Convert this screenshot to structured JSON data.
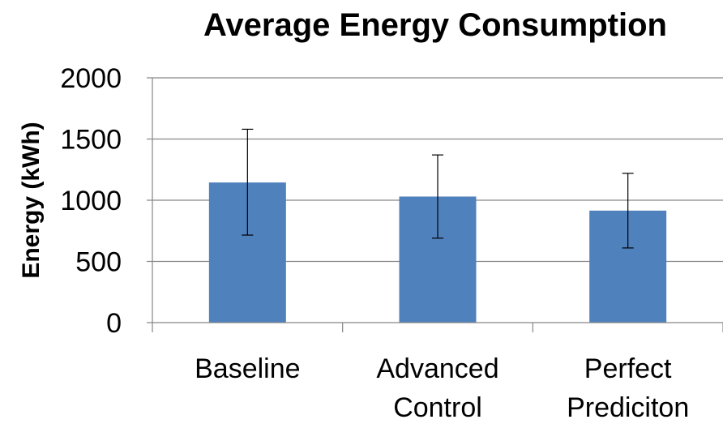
{
  "chart_data": {
    "type": "bar",
    "title": "Average Energy Consumption",
    "xlabel": "",
    "ylabel": "Energy (kWh)",
    "ylim": [
      0,
      2000
    ],
    "yticks": [
      "0",
      "500",
      "1000",
      "1500",
      "2000"
    ],
    "grid": true,
    "legend": "none",
    "categories": [
      [
        "Baseline"
      ],
      [
        "Advanced",
        "Control"
      ],
      [
        "Perfect",
        "Prediciton"
      ]
    ],
    "values": [
      1145,
      1030,
      915
    ],
    "error_bars": [
      {
        "low": 715,
        "high": 1580
      },
      {
        "low": 690,
        "high": 1370
      },
      {
        "low": 610,
        "high": 1220
      }
    ],
    "colors": {
      "bar": "#4F81BD",
      "grid": "#868686",
      "axis": "#868686",
      "error_bar": "#000000"
    }
  }
}
